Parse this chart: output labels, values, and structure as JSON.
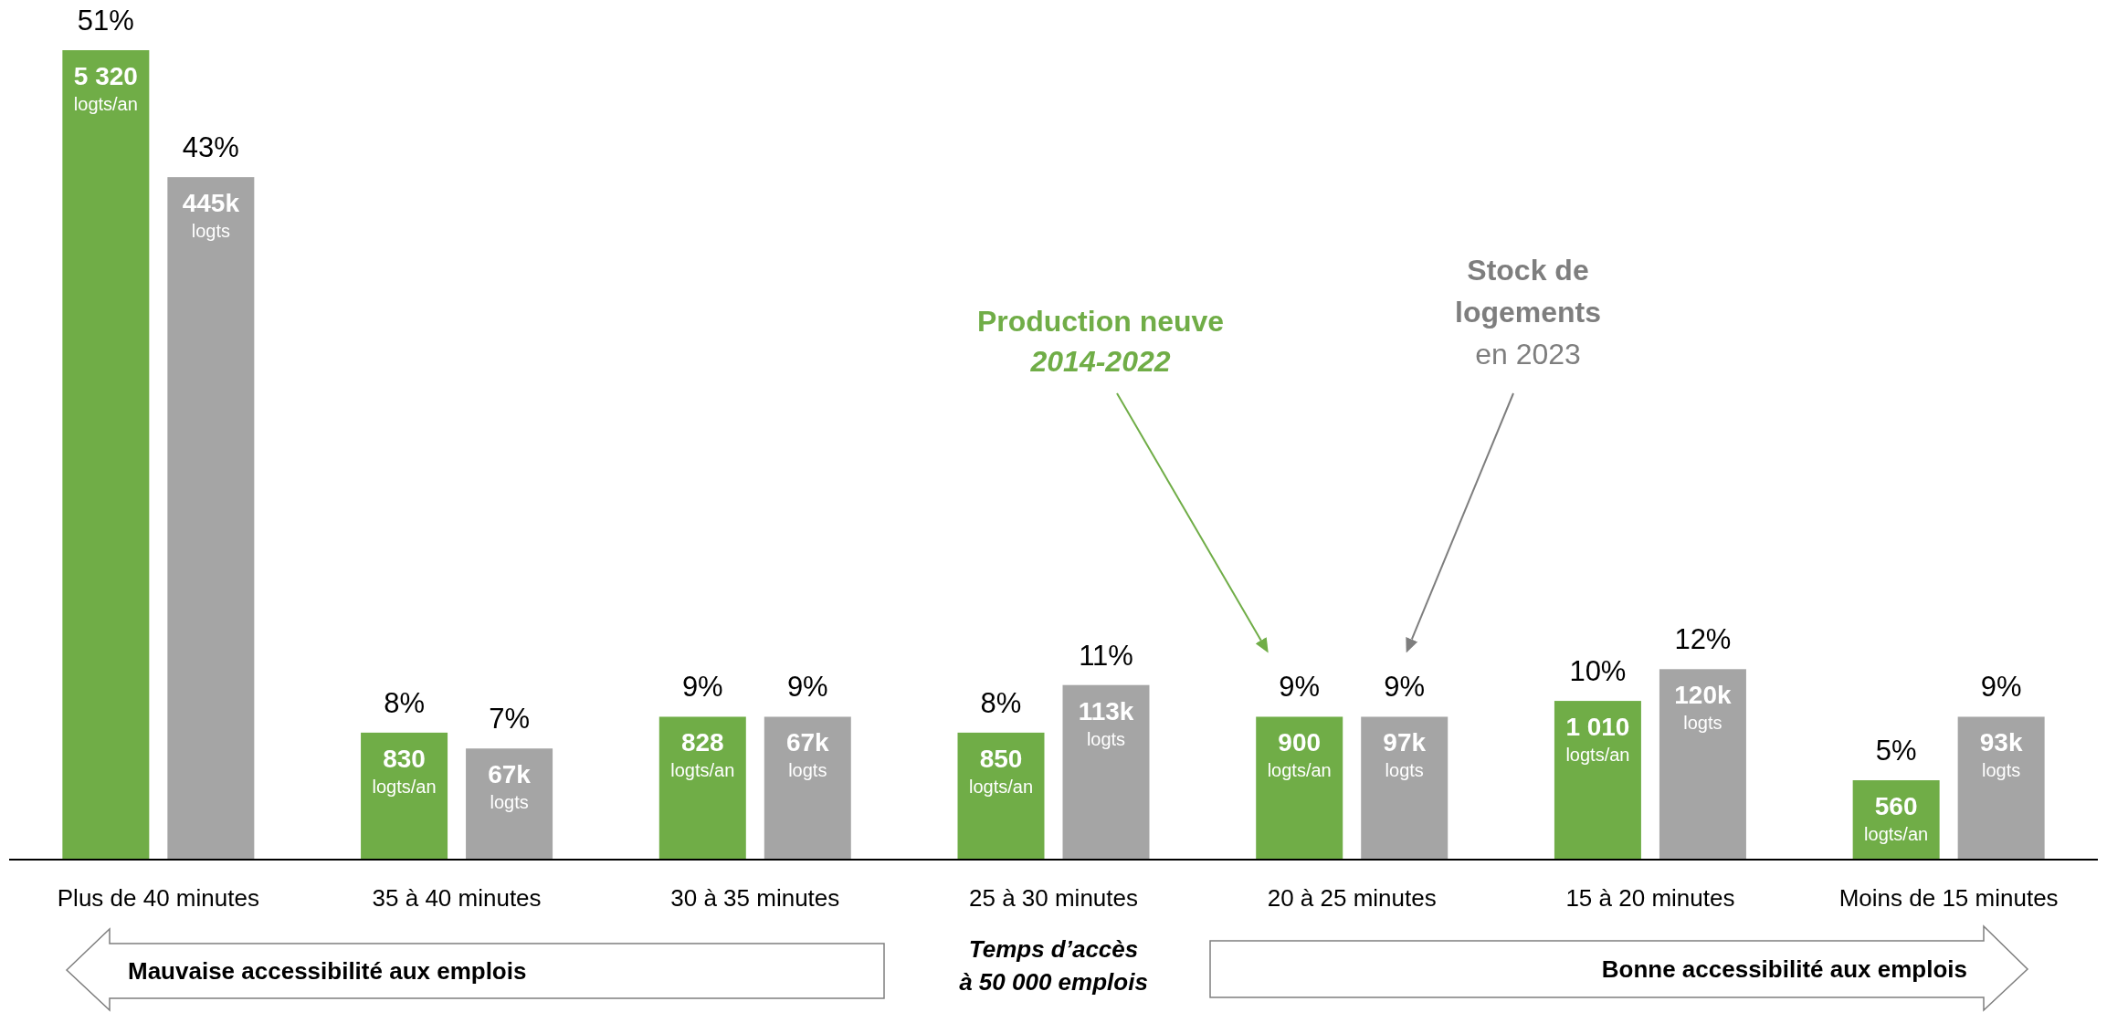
{
  "chart_data": {
    "type": "bar",
    "categories": [
      "Plus de 40 minutes",
      "35 à 40 minutes",
      "30 à 35 minutes",
      "25 à 30 minutes",
      "20 à 25 minutes",
      "15 à 20 minutes",
      "Moins de 15 minutes"
    ],
    "series": [
      {
        "name": "Production neuve\n2014-2022",
        "color": "#70ad47",
        "values": [
          51,
          8,
          9,
          8,
          9,
          10,
          5
        ],
        "value_labels": [
          "51%",
          "8%",
          "9%",
          "8%",
          "9%",
          "10%",
          "5%"
        ]
      },
      {
        "name": "Stock de\nlogements\nen 2023",
        "color": "#a5a5a5",
        "values": [
          43,
          7,
          9,
          11,
          9,
          12,
          9
        ],
        "value_labels": [
          "43%",
          "7%",
          "9%",
          "11%",
          "9%",
          "12%",
          "9%"
        ]
      }
    ],
    "xlabel": "Temps d’accès\nà 50 000 emplois",
    "tick_labels": "x",
    "annotations": [
      "5 320\nlogts/an",
      "445k\nlogts",
      "830\nlogts/an",
      "67k\nlogts",
      "828\nlogts/an",
      "67k\nlogts",
      "850\nlogts/an",
      "113k\nlogts",
      "900\nlogts/an",
      "97k\nlogts",
      "1 010\nlogts/an",
      "120k\nlogts",
      "560\nlogts/an",
      "93k\nlogts",
      "Mauvaise accessibilité aux emplois",
      "Bonne accessibilité aux emplois"
    ]
  }
}
